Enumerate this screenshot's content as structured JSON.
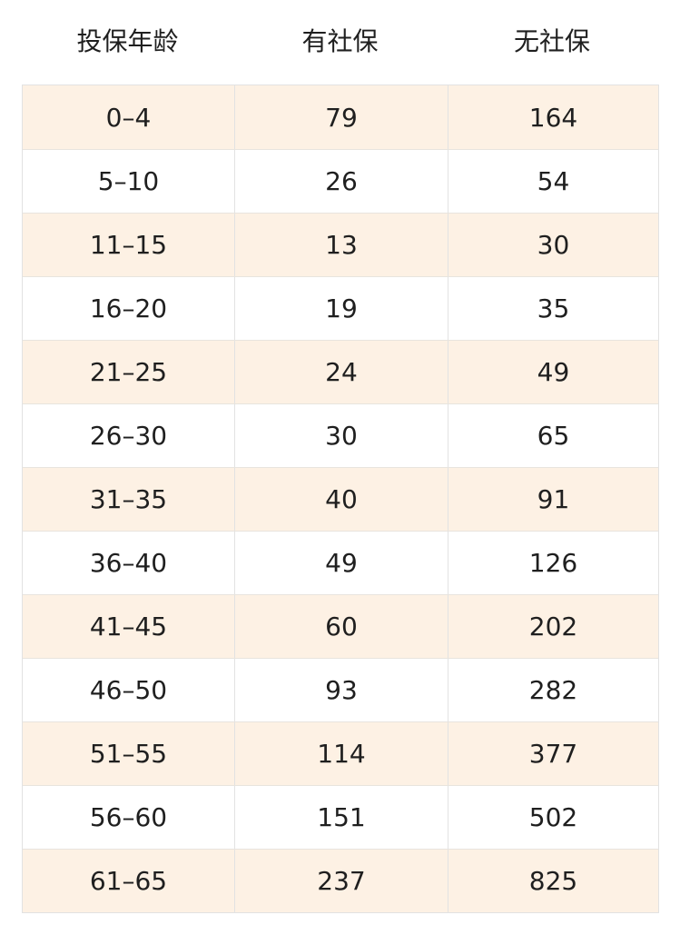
{
  "table": {
    "headers": [
      "投保年龄",
      "有社保",
      "无社保"
    ],
    "rows": [
      [
        "0–4",
        "79",
        "164"
      ],
      [
        "5–10",
        "26",
        "54"
      ],
      [
        "11–15",
        "13",
        "30"
      ],
      [
        "16–20",
        "19",
        "35"
      ],
      [
        "21–25",
        "24",
        "49"
      ],
      [
        "26–30",
        "30",
        "65"
      ],
      [
        "31–35",
        "40",
        "91"
      ],
      [
        "36–40",
        "49",
        "126"
      ],
      [
        "41–45",
        "60",
        "202"
      ],
      [
        "46–50",
        "93",
        "282"
      ],
      [
        "51–55",
        "114",
        "377"
      ],
      [
        "56–60",
        "151",
        "502"
      ],
      [
        "61–65",
        "237",
        "825"
      ]
    ]
  },
  "colors": {
    "stripe": "#fdf1e4",
    "white": "#ffffff",
    "border": "#e2e2e2",
    "text": "#1f1f1f"
  }
}
